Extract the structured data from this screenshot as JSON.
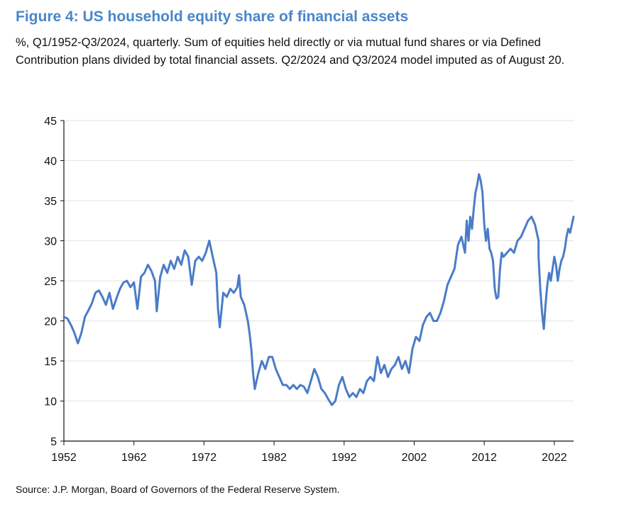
{
  "header": {
    "title": "Figure 4: US household equity share of financial assets",
    "subtitle": "%, Q1/1952-Q3/2024, quarterly. Sum of equities held directly or via mutual fund shares or via Defined Contribution plans divided by total financial assets. Q2/2024 and Q3/2024 model imputed as of August 20."
  },
  "footer": {
    "source": "Source: J.P. Morgan, Board of Governors of the Federal Reserve System."
  },
  "colors": {
    "title": "#4a86c8",
    "series": "#4a7cc7",
    "grid": "#e3e3e3",
    "axis": "#111111"
  },
  "chart_data": {
    "type": "line",
    "title": "Figure 4: US household equity share of financial assets",
    "xlabel": "",
    "ylabel": "",
    "xlim": [
      1952,
      2024.75
    ],
    "ylim": [
      5,
      45
    ],
    "x_ticks": [
      "1952",
      "1962",
      "1972",
      "1982",
      "1992",
      "2002",
      "2012",
      "2022"
    ],
    "y_ticks": [
      "5",
      "10",
      "15",
      "20",
      "25",
      "30",
      "35",
      "40",
      "45"
    ],
    "grid": "horizontal",
    "legend": "none",
    "series": [
      {
        "name": "",
        "points": [
          [
            1952.0,
            20.5
          ],
          [
            1952.5,
            20.3
          ],
          [
            1953.0,
            19.5
          ],
          [
            1953.5,
            18.5
          ],
          [
            1954.0,
            17.2
          ],
          [
            1954.5,
            18.5
          ],
          [
            1955.0,
            20.5
          ],
          [
            1955.5,
            21.3
          ],
          [
            1956.0,
            22.2
          ],
          [
            1956.5,
            23.5
          ],
          [
            1957.0,
            23.8
          ],
          [
            1957.5,
            23.0
          ],
          [
            1958.0,
            22.0
          ],
          [
            1958.5,
            23.5
          ],
          [
            1959.0,
            21.5
          ],
          [
            1959.5,
            22.8
          ],
          [
            1960.0,
            24.0
          ],
          [
            1960.5,
            24.8
          ],
          [
            1961.0,
            25.0
          ],
          [
            1961.5,
            24.2
          ],
          [
            1962.0,
            24.8
          ],
          [
            1962.5,
            21.5
          ],
          [
            1963.0,
            25.5
          ],
          [
            1963.5,
            26.0
          ],
          [
            1964.0,
            27.0
          ],
          [
            1964.5,
            26.2
          ],
          [
            1965.0,
            25.0
          ],
          [
            1965.25,
            21.2
          ],
          [
            1965.75,
            25.5
          ],
          [
            1966.25,
            27.0
          ],
          [
            1966.75,
            26.0
          ],
          [
            1967.25,
            27.5
          ],
          [
            1967.75,
            26.5
          ],
          [
            1968.25,
            28.0
          ],
          [
            1968.75,
            27.0
          ],
          [
            1969.25,
            28.8
          ],
          [
            1969.75,
            28.0
          ],
          [
            1970.25,
            24.5
          ],
          [
            1970.75,
            27.5
          ],
          [
            1971.25,
            28.0
          ],
          [
            1971.75,
            27.5
          ],
          [
            1972.25,
            28.5
          ],
          [
            1972.75,
            30.0
          ],
          [
            1973.25,
            28.0
          ],
          [
            1973.75,
            26.0
          ],
          [
            1974.0,
            21.5
          ],
          [
            1974.25,
            19.2
          ],
          [
            1974.75,
            23.5
          ],
          [
            1975.25,
            23.0
          ],
          [
            1975.75,
            24.0
          ],
          [
            1976.25,
            23.5
          ],
          [
            1976.75,
            24.2
          ],
          [
            1977.0,
            25.7
          ],
          [
            1977.25,
            23.0
          ],
          [
            1977.75,
            22.0
          ],
          [
            1978.25,
            20.0
          ],
          [
            1978.5,
            18.5
          ],
          [
            1978.75,
            16.5
          ],
          [
            1979.0,
            13.5
          ],
          [
            1979.25,
            11.5
          ],
          [
            1979.75,
            13.5
          ],
          [
            1980.25,
            15.0
          ],
          [
            1980.75,
            14.0
          ],
          [
            1981.25,
            15.5
          ],
          [
            1981.75,
            15.5
          ],
          [
            1982.25,
            14.0
          ],
          [
            1982.75,
            13.0
          ],
          [
            1983.25,
            12.0
          ],
          [
            1983.75,
            12.0
          ],
          [
            1984.25,
            11.5
          ],
          [
            1984.75,
            12.0
          ],
          [
            1985.25,
            11.5
          ],
          [
            1985.75,
            12.0
          ],
          [
            1986.25,
            11.8
          ],
          [
            1986.75,
            11.0
          ],
          [
            1987.25,
            12.5
          ],
          [
            1987.75,
            14.0
          ],
          [
            1988.25,
            13.0
          ],
          [
            1988.75,
            11.5
          ],
          [
            1989.25,
            11.0
          ],
          [
            1989.75,
            10.2
          ],
          [
            1990.25,
            9.5
          ],
          [
            1990.75,
            10.0
          ],
          [
            1991.25,
            12.0
          ],
          [
            1991.75,
            13.0
          ],
          [
            1992.25,
            11.5
          ],
          [
            1992.75,
            10.5
          ],
          [
            1993.25,
            11.0
          ],
          [
            1993.75,
            10.5
          ],
          [
            1994.25,
            11.5
          ],
          [
            1994.75,
            11.0
          ],
          [
            1995.25,
            12.5
          ],
          [
            1995.75,
            13.0
          ],
          [
            1996.25,
            12.5
          ],
          [
            1996.75,
            15.5
          ],
          [
            1997.25,
            13.5
          ],
          [
            1997.75,
            14.5
          ],
          [
            1998.25,
            13.0
          ],
          [
            1998.75,
            14.0
          ],
          [
            1999.25,
            14.5
          ],
          [
            1999.75,
            15.5
          ],
          [
            2000.25,
            14.0
          ],
          [
            2000.75,
            15.0
          ],
          [
            2001.25,
            13.5
          ],
          [
            2001.75,
            16.5
          ],
          [
            2002.25,
            18.0
          ],
          [
            2002.75,
            17.5
          ],
          [
            2003.25,
            19.5
          ],
          [
            2003.75,
            20.5
          ],
          [
            2004.25,
            21.0
          ],
          [
            2004.75,
            20.0
          ],
          [
            2005.25,
            20.0
          ],
          [
            2005.75,
            21.0
          ],
          [
            2006.25,
            22.5
          ],
          [
            2006.75,
            24.5
          ],
          [
            2007.25,
            25.5
          ],
          [
            2007.75,
            26.5
          ],
          [
            2008.25,
            29.5
          ],
          [
            2008.75,
            30.5
          ],
          [
            2009.25,
            28.5
          ],
          [
            2009.5,
            32.5
          ],
          [
            2009.75,
            30.0
          ],
          [
            2010.0,
            33.0
          ],
          [
            2010.25,
            31.5
          ],
          [
            2010.5,
            34.0
          ],
          [
            2010.75,
            36.0
          ],
          [
            2011.0,
            37.0
          ],
          [
            2011.25,
            38.3
          ],
          [
            2011.5,
            37.5
          ],
          [
            2011.75,
            36.0
          ],
          [
            2012.0,
            32.0
          ],
          [
            2012.25,
            30.0
          ],
          [
            2012.5,
            31.5
          ],
          [
            2012.75,
            29.0
          ],
          [
            2013.0,
            28.5
          ],
          [
            2013.25,
            27.5
          ],
          [
            2013.5,
            24.0
          ],
          [
            2013.75,
            22.8
          ],
          [
            2014.0,
            23.0
          ],
          [
            2014.25,
            26.5
          ],
          [
            2014.5,
            28.5
          ],
          [
            2014.75,
            28.0
          ],
          [
            2015.25,
            28.5
          ],
          [
            2015.75,
            29.0
          ],
          [
            2016.25,
            28.5
          ],
          [
            2016.75,
            30.0
          ],
          [
            2017.25,
            30.5
          ],
          [
            2017.75,
            31.5
          ],
          [
            2018.25,
            32.5
          ],
          [
            2018.75,
            33.0
          ],
          [
            2019.25,
            32.0
          ],
          [
            2019.75,
            30.0
          ],
          [
            2019.75,
            28.0
          ],
          [
            2020.0,
            24.0
          ],
          [
            2020.25,
            21.0
          ],
          [
            2020.5,
            19.0
          ],
          [
            2020.75,
            22.0
          ],
          [
            2021.0,
            24.5
          ],
          [
            2021.25,
            26.0
          ],
          [
            2021.5,
            25.0
          ],
          [
            2021.75,
            26.5
          ],
          [
            2022.0,
            28.0
          ],
          [
            2022.25,
            27.0
          ],
          [
            2022.5,
            25.0
          ],
          [
            2022.75,
            26.5
          ],
          [
            2023.0,
            27.5
          ],
          [
            2023.25,
            28.0
          ],
          [
            2023.5,
            29.0
          ],
          [
            2023.75,
            30.5
          ],
          [
            2024.0,
            31.5
          ],
          [
            2024.25,
            31.0
          ],
          [
            2024.5,
            32.0
          ],
          [
            2024.75,
            33.0
          ]
        ]
      }
    ]
  }
}
